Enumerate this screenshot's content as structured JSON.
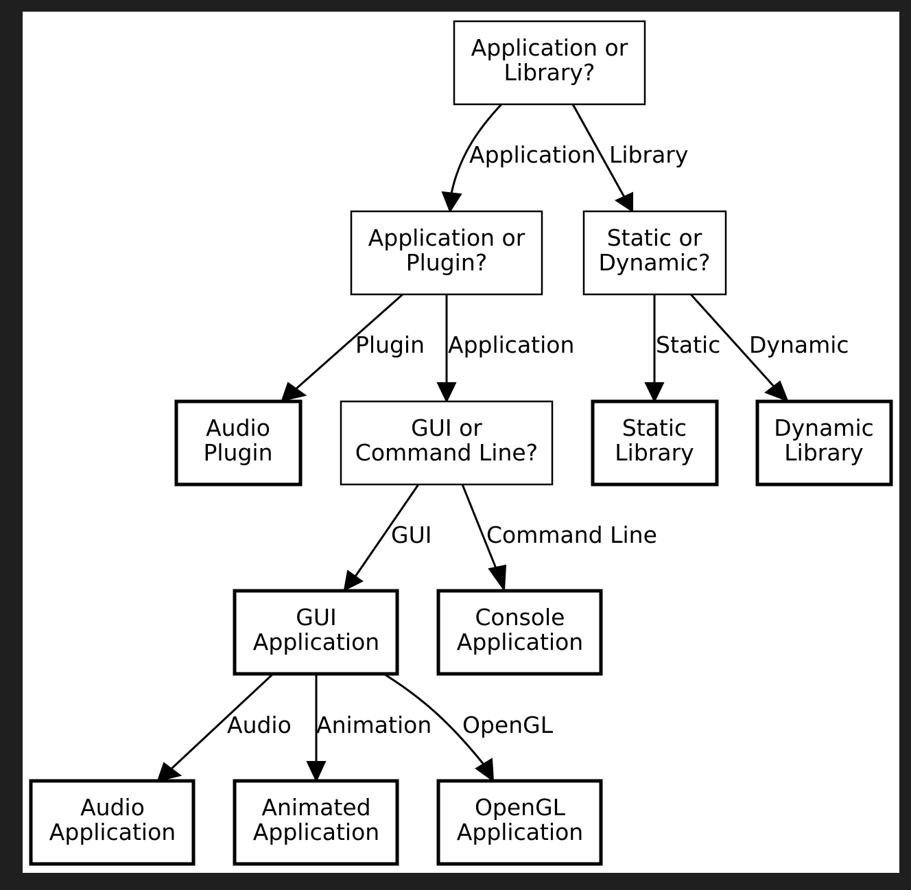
{
  "diagram": {
    "type": "decision-tree",
    "colors": {
      "frame": "#1f1f1f",
      "paper": "#ffffff",
      "ink": "#000000"
    },
    "nodes": {
      "root": {
        "lines": [
          "Application or",
          "Library?"
        ],
        "kind": "decision"
      },
      "app_or_plugin": {
        "lines": [
          "Application or",
          "Plugin?"
        ],
        "kind": "decision"
      },
      "static_or_dynamic": {
        "lines": [
          "Static or",
          "Dynamic?"
        ],
        "kind": "decision"
      },
      "audio_plugin": {
        "lines": [
          "Audio",
          "Plugin"
        ],
        "kind": "leaf"
      },
      "gui_or_cli": {
        "lines": [
          "GUI or",
          "Command Line?"
        ],
        "kind": "decision"
      },
      "static_library": {
        "lines": [
          "Static",
          "Library"
        ],
        "kind": "leaf"
      },
      "dynamic_library": {
        "lines": [
          "Dynamic",
          "Library"
        ],
        "kind": "leaf"
      },
      "gui_application": {
        "lines": [
          "GUI",
          "Application"
        ],
        "kind": "leaf"
      },
      "console_application": {
        "lines": [
          "Console",
          "Application"
        ],
        "kind": "leaf"
      },
      "audio_application": {
        "lines": [
          "Audio",
          "Application"
        ],
        "kind": "leaf"
      },
      "animated_application": {
        "lines": [
          "Animated",
          "Application"
        ],
        "kind": "leaf"
      },
      "opengl_application": {
        "lines": [
          "OpenGL",
          "Application"
        ],
        "kind": "leaf"
      }
    },
    "edges": {
      "root_app": {
        "from": "root",
        "to": "app_or_plugin",
        "label": "Application"
      },
      "root_lib": {
        "from": "root",
        "to": "static_or_dynamic",
        "label": "Library"
      },
      "aop_plugin": {
        "from": "app_or_plugin",
        "to": "audio_plugin",
        "label": "Plugin"
      },
      "aop_app": {
        "from": "app_or_plugin",
        "to": "gui_or_cli",
        "label": "Application"
      },
      "sod_static": {
        "from": "static_or_dynamic",
        "to": "static_library",
        "label": "Static"
      },
      "sod_dynamic": {
        "from": "static_or_dynamic",
        "to": "dynamic_library",
        "label": "Dynamic"
      },
      "goc_gui": {
        "from": "gui_or_cli",
        "to": "gui_application",
        "label": "GUI"
      },
      "goc_cli": {
        "from": "gui_or_cli",
        "to": "console_application",
        "label": "Command Line"
      },
      "gui_audio": {
        "from": "gui_application",
        "to": "audio_application",
        "label": "Audio"
      },
      "gui_anim": {
        "from": "gui_application",
        "to": "animated_application",
        "label": "Animation"
      },
      "gui_opengl": {
        "from": "gui_application",
        "to": "opengl_application",
        "label": "OpenGL"
      }
    }
  }
}
